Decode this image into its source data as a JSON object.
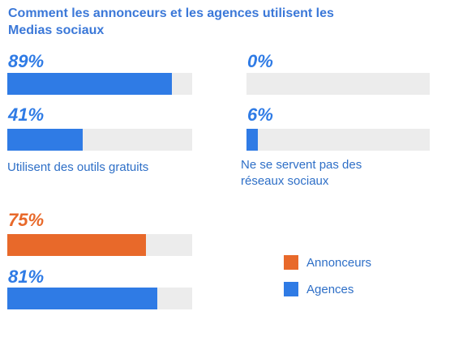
{
  "title": "Comment les annonceurs et les agences utilisent les Medias sociaux",
  "colors": {
    "annonceurs": "#e8692a",
    "agences": "#2f7be5",
    "track": "#ececec"
  },
  "legend": [
    {
      "label": "Annonceurs",
      "color": "#e8692a"
    },
    {
      "label": "Agences",
      "color": "#2f7be5"
    }
  ],
  "chart_data": [
    {
      "type": "bar",
      "caption": "Utilisent des outils gratuits",
      "series": [
        {
          "name": "Agences",
          "value": 89,
          "label": "89%"
        },
        {
          "name": "Agences",
          "value": 41,
          "label": "41%"
        }
      ],
      "ylim": [
        0,
        100
      ]
    },
    {
      "type": "bar",
      "caption": "Ne se servent pas des réseaux sociaux",
      "series": [
        {
          "name": "Agences",
          "value": 0,
          "label": "0%"
        },
        {
          "name": "Agences",
          "value": 6,
          "label": "6%"
        }
      ],
      "ylim": [
        0,
        100
      ]
    },
    {
      "type": "bar",
      "caption": "",
      "series": [
        {
          "name": "Annonceurs",
          "value": 75,
          "label": "75%"
        },
        {
          "name": "Agences",
          "value": 81,
          "label": "81%"
        }
      ],
      "ylim": [
        0,
        100
      ]
    }
  ]
}
